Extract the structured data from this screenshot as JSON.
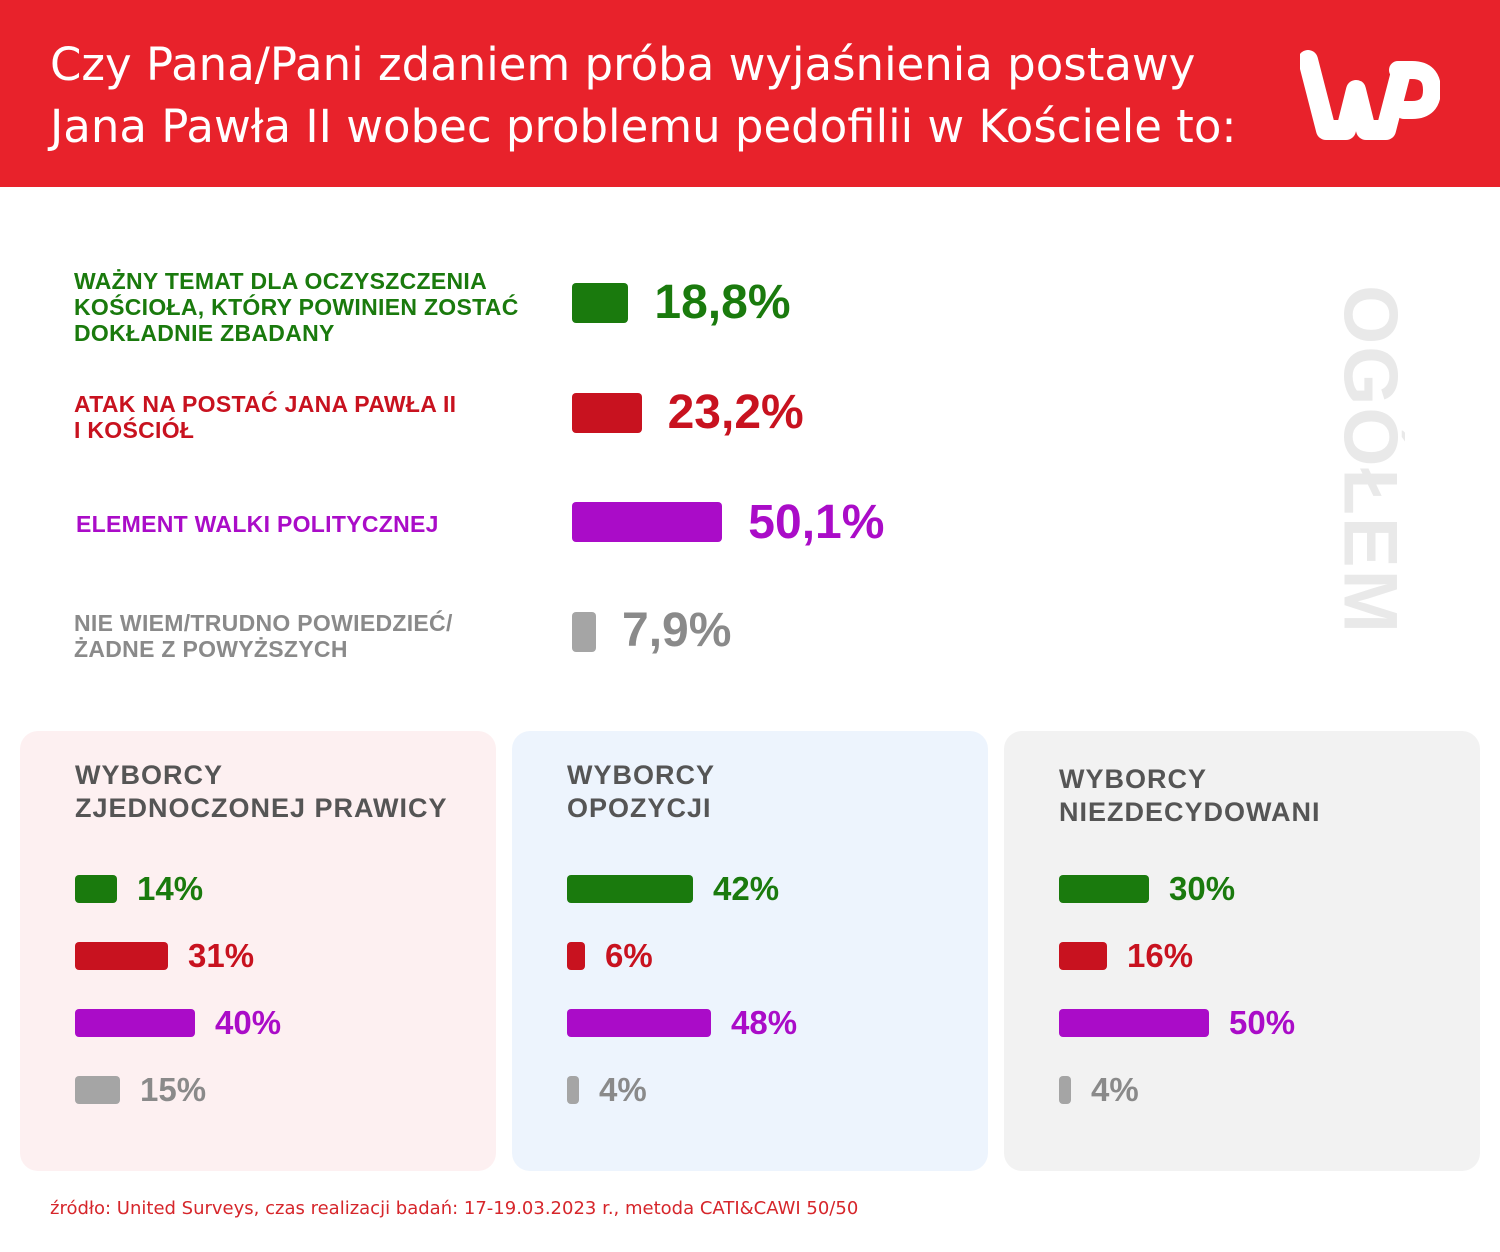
{
  "header": {
    "title_line1": "Czy Pana/Pani zdaniem próba wyjaśnienia postawy",
    "title_line2": "Jana Pawła II wobec problemu pedofilii w Kościele to:",
    "logo_text": "WP",
    "background": "#e8222b"
  },
  "colors": {
    "green": "#1a7a0d",
    "red": "#c8121f",
    "purple": "#aa0cc8",
    "gray": "#a5a5a5",
    "gray_text": "#8a8a8a"
  },
  "overall": {
    "side_label": "OGÓŁEM",
    "items": [
      {
        "label": "WAŻNY TEMAT DLA OCZYSZCZENIA\nKOŚCIOŁA, KTÓRY POWINIEN ZOSTAĆ\nDOKŁADNIE ZBADANY",
        "value_text": "18,8%"
      },
      {
        "label": "ATAK NA POSTAĆ JANA PAWŁA II\nI KOŚCIÓŁ",
        "value_text": "23,2%"
      },
      {
        "label": "ELEMENT WALKI POLITYCZNEJ",
        "value_text": "50,1%"
      },
      {
        "label": "NIE WIEM/TRUDNO POWIEDZIEĆ/\nŻADNE Z POWYŻSZYCH",
        "value_text": "7,9%"
      }
    ]
  },
  "panels": [
    {
      "title": "WYBORCY\nZJEDNOCZONEJ PRAWICY",
      "background": "#fdf0f1",
      "values_text": [
        "14%",
        "31%",
        "40%",
        "15%"
      ]
    },
    {
      "title": "WYBORCY\nOPOZYCJI",
      "background": "#edf4fd",
      "values_text": [
        "42%",
        "6%",
        "48%",
        "4%"
      ]
    },
    {
      "title": "WYBORCY\nNIEZDECYDOWANI",
      "background": "#f2f2f2",
      "values_text": [
        "30%",
        "16%",
        "50%",
        "4%"
      ]
    }
  ],
  "chart_data": [
    {
      "type": "bar",
      "title": "OGÓŁEM",
      "categories": [
        "WAŻNY TEMAT DLA OCZYSZCZENIA KOŚCIOŁA, KTÓRY POWINIEN ZOSTAĆ DOKŁADNIE ZBADANY",
        "ATAK NA POSTAĆ JANA PAWŁA II I KOŚCIÓŁ",
        "ELEMENT WALKI POLITYCZNEJ",
        "NIE WIEM/TRUDNO POWIEDZIEĆ/ŻADNE Z POWYŻSZYCH"
      ],
      "values": [
        18.8,
        23.2,
        50.1,
        7.9
      ],
      "orientation": "horizontal"
    },
    {
      "type": "bar",
      "title": "WYBORCY ZJEDNOCZONEJ PRAWICY",
      "values": [
        14,
        31,
        40,
        15
      ],
      "orientation": "horizontal"
    },
    {
      "type": "bar",
      "title": "WYBORCY OPOZYCJI",
      "values": [
        42,
        6,
        48,
        4
      ],
      "orientation": "horizontal"
    },
    {
      "type": "bar",
      "title": "WYBORCY NIEZDECYDOWANI",
      "values": [
        30,
        16,
        50,
        4
      ],
      "orientation": "horizontal"
    }
  ],
  "footer": {
    "source": "źródło: United Surveys, czas realizacji badań: 17-19.03.2023 r., metoda CATI&CAWI 50/50"
  }
}
